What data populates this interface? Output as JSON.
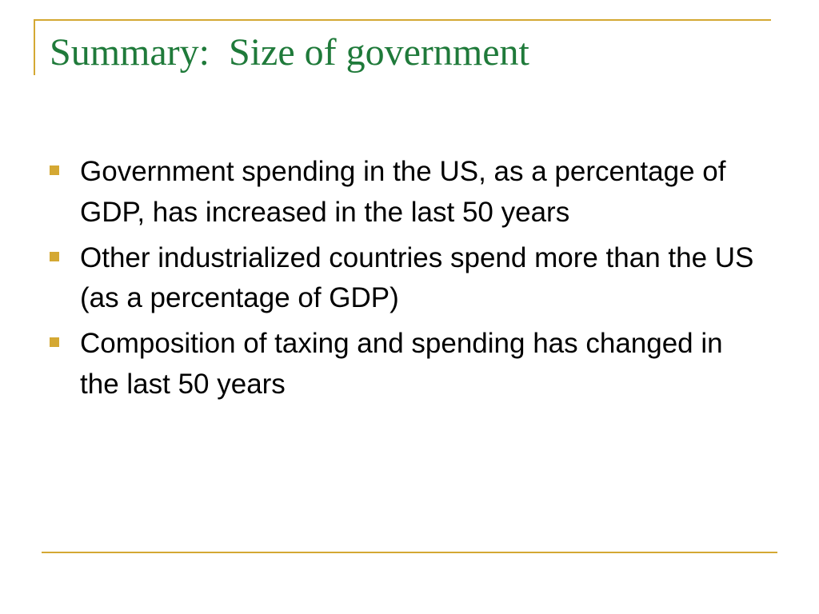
{
  "colors": {
    "title": "#1f7a3a",
    "accent": "#d4a833",
    "body_text": "#000000",
    "background": "#ffffff"
  },
  "slide": {
    "title": "Summary:  Size of government",
    "bullets": [
      {
        "text": "Government spending in the US, as a percentage of GDP, has increased in the last 50 years"
      },
      {
        "text": "Other industrialized countries spend more than the US (as a percentage of GDP)"
      },
      {
        "text": "Composition of taxing and spending has changed in the last 50 years"
      }
    ]
  }
}
